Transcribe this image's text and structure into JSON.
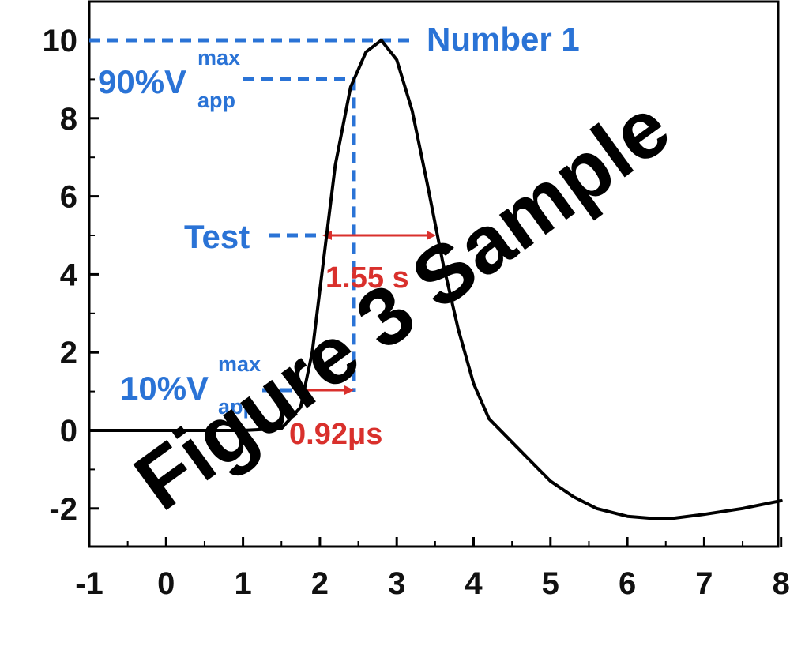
{
  "chart_data": {
    "type": "line",
    "title": "",
    "xlabel": "",
    "ylabel": "",
    "xlim": [
      -1,
      8
    ],
    "ylim": [
      -3,
      10
    ],
    "x_ticks": [
      -1,
      0,
      1,
      2,
      3,
      4,
      5,
      6,
      7,
      8
    ],
    "y_ticks": [
      -2,
      0,
      2,
      4,
      6,
      8,
      10
    ],
    "x_tick_labels": [
      "-1",
      "0",
      "1",
      "2",
      "3",
      "4",
      "5",
      "6",
      "7",
      "8"
    ],
    "y_tick_labels": [
      "-2",
      "0",
      "2",
      "4",
      "6",
      "8",
      "10"
    ],
    "grid": false,
    "series": [
      {
        "x": [
          -1.0,
          0.0,
          1.0,
          1.5,
          1.75,
          1.9,
          2.0,
          2.2,
          2.4,
          2.6,
          2.8,
          3.0,
          3.2,
          3.4,
          3.6,
          3.8,
          4.0,
          4.2,
          4.5,
          4.8,
          5.0,
          5.3,
          5.6,
          6.0,
          6.3,
          6.6,
          7.0,
          7.5,
          8.0
        ],
        "y": [
          0.0,
          0.0,
          0.0,
          0.05,
          0.6,
          2.0,
          3.6,
          6.8,
          8.8,
          9.7,
          10.0,
          9.5,
          8.2,
          6.3,
          4.3,
          2.6,
          1.2,
          0.3,
          -0.3,
          -0.9,
          -1.3,
          -1.7,
          -2.0,
          -2.2,
          -2.25,
          -2.25,
          -2.15,
          -2.0,
          -1.8
        ]
      }
    ],
    "annotations": {
      "number1": "Number 1",
      "ninety_main": "90%V",
      "ninety_sup": "max",
      "ninety_sub": "app",
      "test": "Test",
      "width_value": "1.55 s",
      "ten_main": "10%V",
      "ten_sup": "max",
      "ten_sub": "app",
      "rise_value": "0.92μs"
    },
    "watermark": "Figure 3 Sample",
    "colors": {
      "line": "#000000",
      "blue": "#2a73d6",
      "red": "#d9302c"
    }
  }
}
